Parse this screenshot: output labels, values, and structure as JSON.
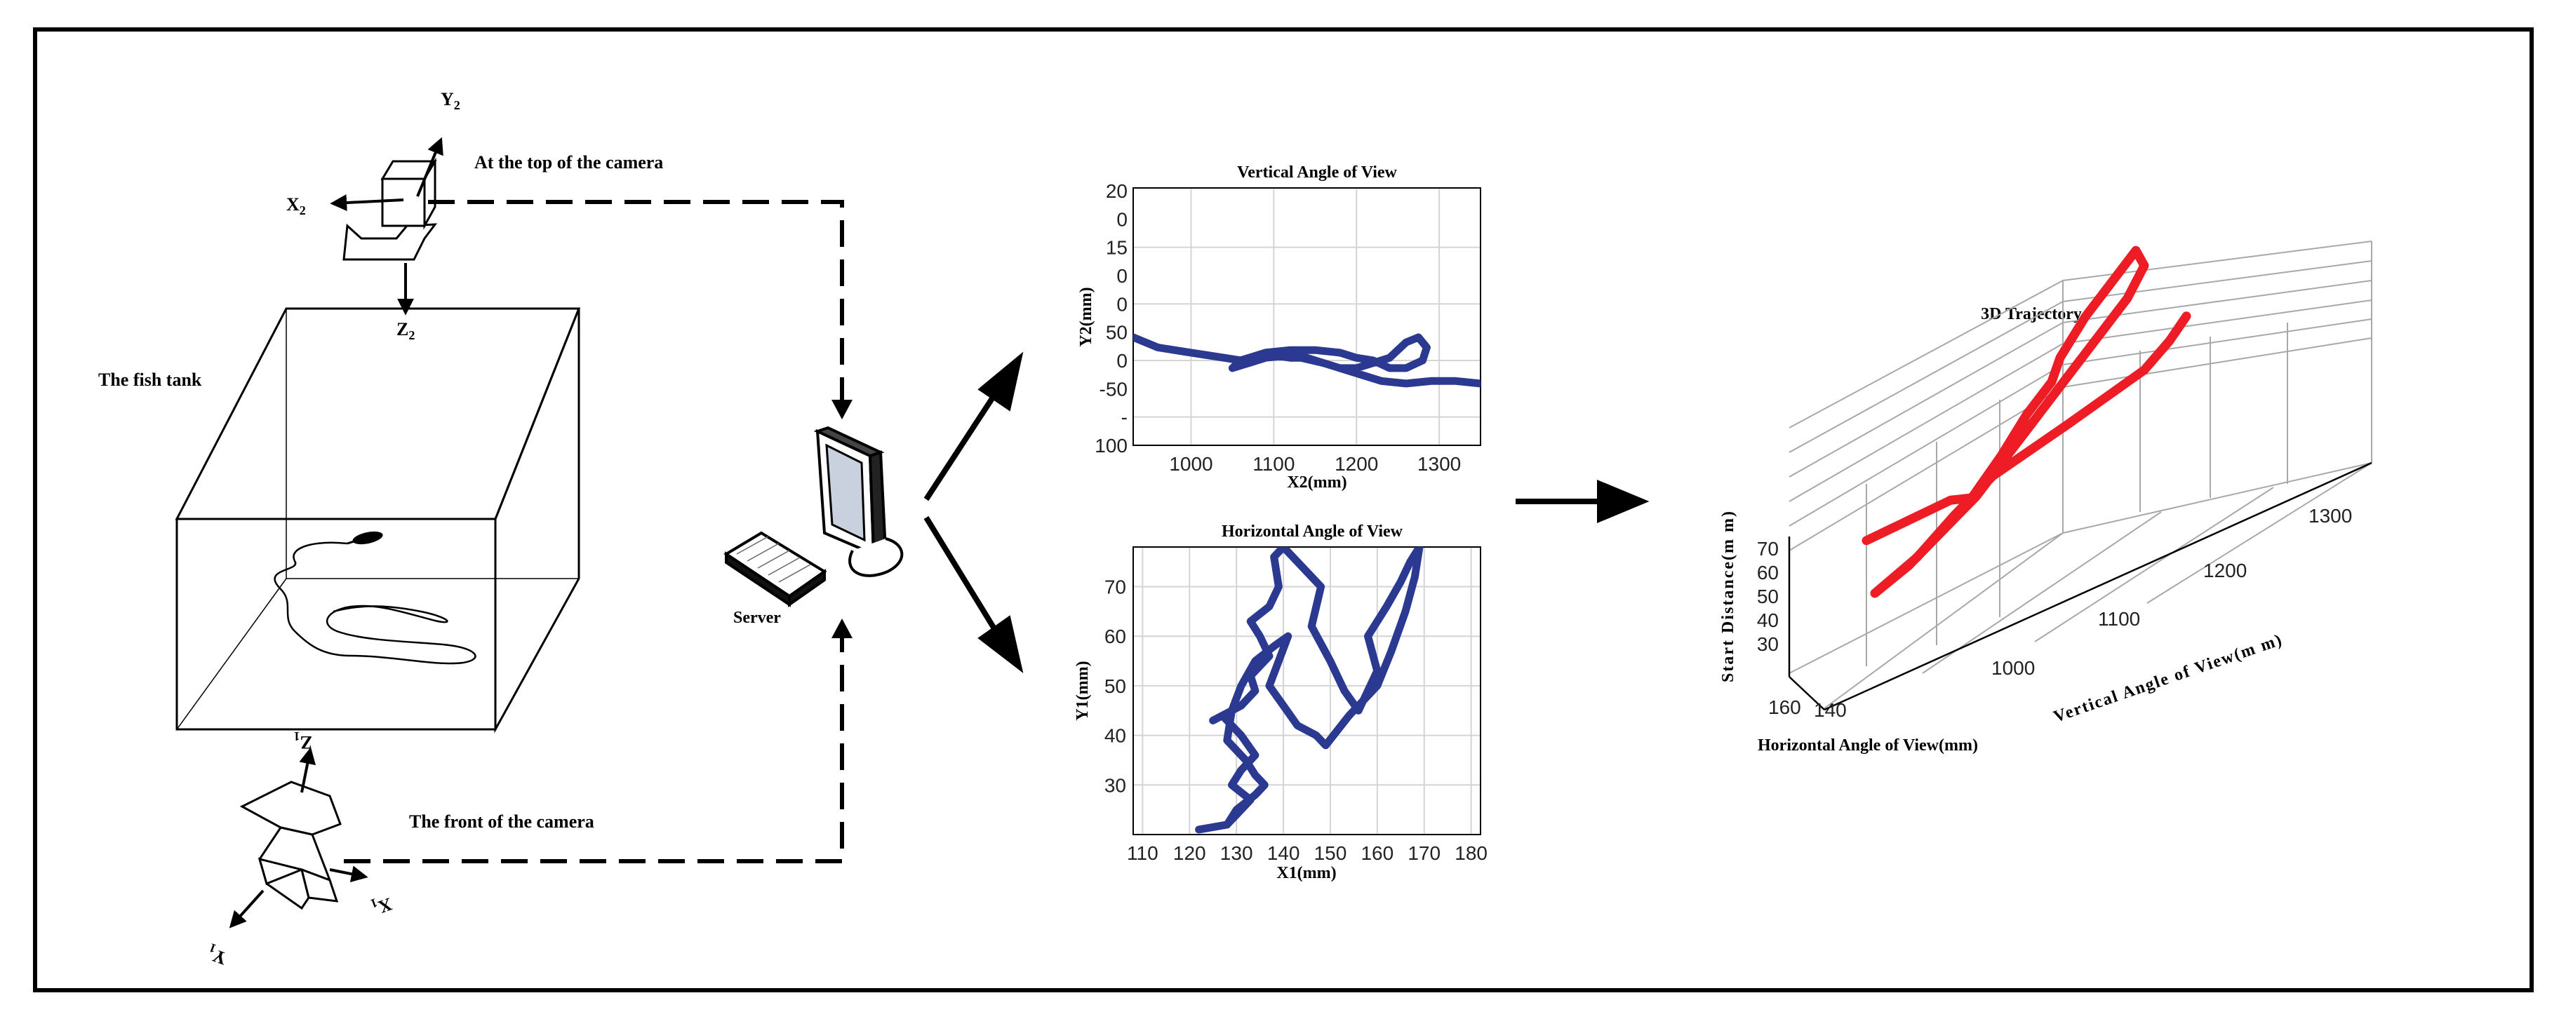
{
  "labels": {
    "top_camera": "At the top of the camera",
    "front_camera": "The front of the camera",
    "fish_tank": "The fish tank",
    "server": "Server",
    "x2": "X",
    "x2_sub": "2",
    "y2": "Y",
    "y2_sub": "2",
    "z2": "Z",
    "z2_sub": "2",
    "x1": "X",
    "x1_sub": "1",
    "y1": "Y",
    "y1_sub": "1",
    "z1": "Z",
    "z1_sub": "1"
  },
  "colors": {
    "trajectory_2d": "#2b3990",
    "trajectory_3d": "#ee1c25",
    "frame": "#000000"
  },
  "icons": {
    "computer": "computer-icon",
    "top_camera": "camera-icon",
    "front_camera": "camera-icon"
  },
  "chart_data": [
    {
      "type": "line",
      "title": "Vertical Angle of View",
      "xlabel": "X2(mm)",
      "ylabel": "Y2(mm)",
      "xlim": [
        930,
        1350
      ],
      "ylim": [
        0,
        1
      ],
      "xticks": [
        "1000",
        "1100",
        "1200",
        "1300"
      ],
      "yticks": [
        "20",
        "0",
        "15",
        "0",
        "0",
        "50",
        "0",
        "-50",
        "-",
        "100"
      ],
      "grid": true,
      "series": [
        {
          "x": [
            930,
            960,
            1000,
            1040,
            1060,
            1080,
            1100,
            1120,
            1140,
            1160,
            1180,
            1200,
            1220,
            1240,
            1260,
            1275,
            1285,
            1280,
            1260,
            1240,
            1220,
            1200,
            1180,
            1150,
            1120,
            1090,
            1060,
            1050,
            1070,
            1090,
            1120,
            1160,
            1200,
            1230,
            1260,
            1290,
            1320,
            1350
          ],
          "y": [
            0.58,
            0.62,
            0.64,
            0.66,
            0.67,
            0.66,
            0.65,
            0.66,
            0.66,
            0.68,
            0.7,
            0.7,
            0.68,
            0.66,
            0.6,
            0.58,
            0.62,
            0.67,
            0.7,
            0.7,
            0.67,
            0.66,
            0.64,
            0.63,
            0.63,
            0.64,
            0.67,
            0.7,
            0.68,
            0.66,
            0.65,
            0.68,
            0.72,
            0.75,
            0.76,
            0.75,
            0.75,
            0.76
          ]
        }
      ]
    },
    {
      "type": "line",
      "title": "Horizontal Angle of View",
      "xlabel": "X1(mm)",
      "ylabel": "Y1(mm)",
      "xlim": [
        108,
        182
      ],
      "ylim": [
        20,
        78
      ],
      "xticks": [
        110,
        120,
        130,
        140,
        150,
        160,
        170,
        180
      ],
      "yticks": [
        30,
        40,
        50,
        60,
        70
      ],
      "grid": true,
      "series": [
        {
          "x": [
            122,
            128,
            130,
            133,
            129,
            131,
            134,
            131,
            129,
            127,
            125,
            131,
            134,
            133,
            137,
            135,
            133,
            137,
            139,
            138,
            140,
            145,
            148,
            146,
            150,
            153,
            156,
            160,
            158,
            162,
            165,
            167,
            169,
            168,
            166,
            163,
            160,
            157,
            154,
            149,
            147,
            143,
            140,
            137,
            139,
            141,
            138,
            134,
            131,
            129,
            128,
            132,
            134,
            136,
            134,
            130,
            128
          ],
          "y": [
            21,
            22,
            24,
            27,
            30,
            33,
            36,
            40,
            42,
            44,
            43,
            46,
            49,
            52,
            56,
            60,
            63,
            66,
            70,
            76,
            78,
            73,
            70,
            62,
            55,
            49,
            45,
            53,
            60,
            66,
            71,
            75,
            78,
            72,
            65,
            57,
            50,
            47,
            44,
            38,
            40,
            42,
            46,
            50,
            55,
            60,
            58,
            55,
            50,
            45,
            39,
            35,
            32,
            30,
            28,
            25,
            22
          ]
        }
      ]
    },
    {
      "type": "line",
      "title": "3D Trajectory",
      "xlabel": "Vertical Angle of View(m m)",
      "ylabel": "Horizontal Angle of View(mm)",
      "zlabel": "Start Distance(m m)",
      "xticks": [
        1000,
        1100,
        1200,
        1300
      ],
      "yticks": [
        160,
        140
      ],
      "zticks": [
        30,
        40,
        50,
        60,
        70
      ],
      "grid": true,
      "series": [
        {
          "x": [
            1000,
            1040,
            1080,
            1100,
            1130,
            1160,
            1190,
            1200,
            1230,
            1260,
            1290,
            1300,
            1280,
            1250,
            1220,
            1190,
            1160,
            1130,
            1100,
            1060,
            1030,
            1000,
            1040,
            1080,
            1120,
            1150,
            1180,
            1210,
            1250,
            1290,
            1320,
            1340
          ],
          "y": [
            150,
            148,
            146,
            145,
            143,
            140,
            137,
            136,
            133,
            130,
            127,
            126,
            128,
            131,
            134,
            137,
            140,
            143,
            146,
            149,
            151,
            152,
            150,
            147,
            144,
            141,
            138,
            135,
            132,
            129,
            126,
            124
          ],
          "z": [
            62,
            60,
            58,
            55,
            60,
            64,
            66,
            70,
            74,
            76,
            78,
            72,
            68,
            66,
            64,
            62,
            60,
            58,
            56,
            54,
            52,
            50,
            52,
            55,
            57,
            55,
            53,
            51,
            50,
            49,
            50,
            52
          ]
        }
      ]
    }
  ]
}
